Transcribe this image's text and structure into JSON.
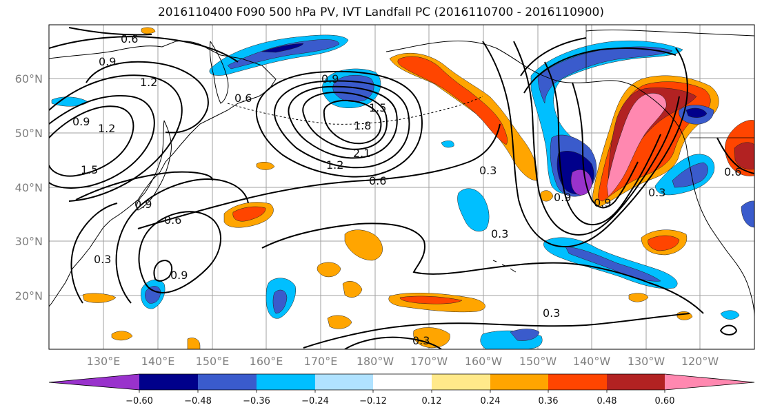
{
  "title": "2016110400 F090 500 hPa PV, IVT Landfall PC (2016110700 - 2016110900)",
  "map": {
    "lat_labels": [
      "60°N",
      "50°N",
      "40°N",
      "30°N",
      "20°N"
    ],
    "lon_labels": [
      "130°E",
      "140°E",
      "150°E",
      "160°E",
      "170°E",
      "180°W",
      "170°W",
      "160°W",
      "150°W",
      "140°W",
      "130°W",
      "120°W"
    ],
    "contour_labels": [
      "0.6",
      "0.9",
      "1.2",
      "0.6",
      "0.9",
      "1.2",
      "1.5",
      "0.9",
      "1.5",
      "1.8",
      "2.1",
      "1.2",
      "0.6",
      "0.3",
      "0.9",
      "0.6",
      "0.9",
      "0.3",
      "0.3",
      "0.6",
      "0.9",
      "0.3",
      "0.3",
      "0.3",
      "0.9"
    ],
    "colors": {
      "coast": "#000000",
      "grid": "#a0a0a0"
    }
  },
  "colorbar": {
    "colors": [
      "#9932cc",
      "#00008b",
      "#3a5bcc",
      "#00bfff",
      "#b0e2ff",
      "#ffffff",
      "#ffe98a",
      "#ffa500",
      "#ff4500",
      "#b22222",
      "#ff88b0"
    ],
    "tick_labels": [
      "−0.60",
      "−0.48",
      "−0.36",
      "−0.24",
      "−0.12",
      "0.12",
      "0.24",
      "0.36",
      "0.48",
      "0.60"
    ]
  }
}
